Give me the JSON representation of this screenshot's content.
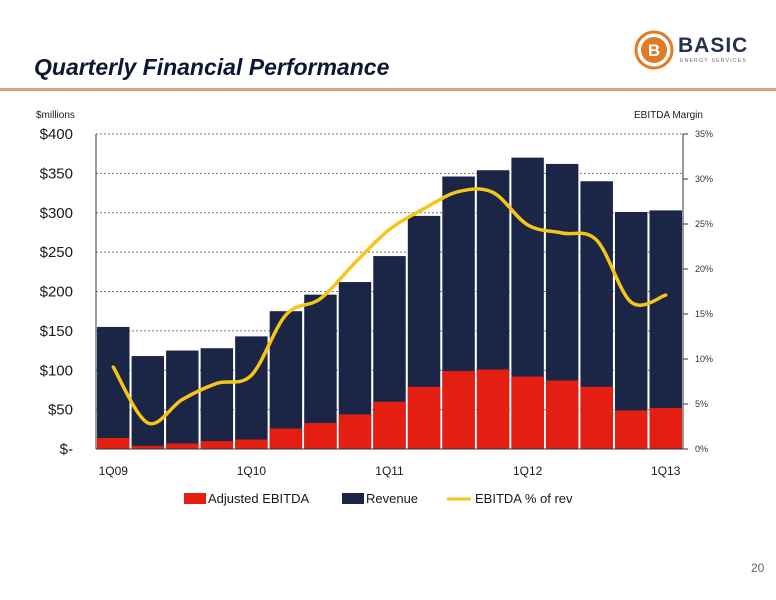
{
  "slide": {
    "title": "Quarterly Financial Performance",
    "page_number": "20",
    "logo": {
      "name": "BASIC",
      "tagline": "ENERGY SERVICES",
      "mark_letter": "B",
      "accent": "#e07b28"
    }
  },
  "colors": {
    "revenue": "#1b2545",
    "ebitda": "#e41e10",
    "margin": "#f5c518",
    "grid": "#7a7a7a"
  },
  "chart_data": {
    "type": "bar",
    "y_left_label": "$millions",
    "y_right_label": "EBITDA Margin",
    "ylim": [
      0,
      400
    ],
    "ylim_right": [
      0,
      35
    ],
    "y_ticks": [
      {
        "value": 0,
        "label": "$-"
      },
      {
        "value": 50,
        "label": "$50"
      },
      {
        "value": 100,
        "label": "$100"
      },
      {
        "value": 150,
        "label": "$150"
      },
      {
        "value": 200,
        "label": "$200"
      },
      {
        "value": 250,
        "label": "$250"
      },
      {
        "value": 300,
        "label": "$300"
      },
      {
        "value": 350,
        "label": "$350"
      },
      {
        "value": 400,
        "label": "$400"
      }
    ],
    "y_right_ticks": [
      {
        "value": 0,
        "label": "0%"
      },
      {
        "value": 5,
        "label": "5%"
      },
      {
        "value": 10,
        "label": "10%"
      },
      {
        "value": 15,
        "label": "15%"
      },
      {
        "value": 20,
        "label": "20%"
      },
      {
        "value": 25,
        "label": "25%"
      },
      {
        "value": 30,
        "label": "30%"
      },
      {
        "value": 35,
        "label": "35%"
      }
    ],
    "grid": true,
    "legend_position": "bottom",
    "categories": [
      "1Q09",
      "",
      "",
      "",
      "1Q10",
      "",
      "",
      "",
      "1Q11",
      "",
      "",
      "",
      "1Q12",
      "",
      "",
      "",
      "1Q13"
    ],
    "series": [
      {
        "name": "Adjusted EBITDA",
        "kind": "bar",
        "axis": "left",
        "values": [
          14,
          4,
          7,
          10,
          12,
          26,
          33,
          44,
          60,
          79,
          99,
          101,
          92,
          87,
          79,
          49,
          52
        ]
      },
      {
        "name": "Revenue",
        "kind": "bar",
        "axis": "left",
        "values": [
          155,
          118,
          125,
          128,
          143,
          175,
          196,
          212,
          245,
          296,
          346,
          354,
          370,
          362,
          340,
          301,
          303
        ]
      },
      {
        "name": "EBITDA % of rev",
        "kind": "line",
        "axis": "right",
        "values": [
          9.1,
          2.9,
          5.5,
          7.3,
          8.2,
          14.9,
          16.7,
          20.7,
          24.4,
          26.7,
          28.6,
          28.5,
          24.9,
          24.0,
          23.2,
          16.3,
          17.1
        ]
      }
    ]
  }
}
